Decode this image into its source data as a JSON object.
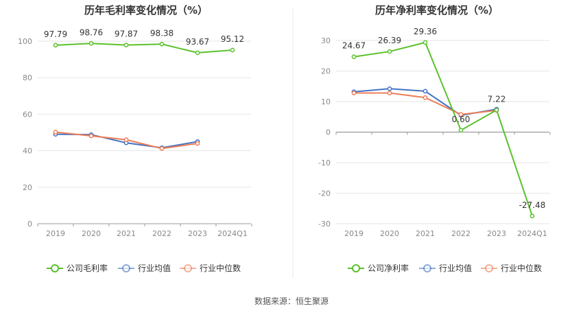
{
  "chart_data": [
    {
      "type": "line",
      "title": "历年毛利率变化情况（%）",
      "categories": [
        "2019",
        "2020",
        "2021",
        "2022",
        "2023",
        "2024Q1"
      ],
      "y_ticks": [
        0,
        20,
        40,
        60,
        80,
        100
      ],
      "ylim": [
        0,
        100
      ],
      "grid": true,
      "series": [
        {
          "name": "公司毛利率",
          "color": "#5ac12b",
          "values": [
            97.79,
            98.76,
            97.87,
            98.38,
            93.67,
            95.12
          ],
          "labels": [
            "97.79",
            "98.76",
            "97.87",
            "98.38",
            "93.67",
            "95.12"
          ]
        },
        {
          "name": "行业均值",
          "color": "#4472c4",
          "values": [
            49.0,
            48.8,
            44.3,
            41.6,
            45.0,
            null
          ]
        },
        {
          "name": "行业中位数",
          "color": "#ed7d57",
          "values": [
            50.2,
            48.1,
            46.0,
            41.2,
            44.0,
            null
          ]
        }
      ]
    },
    {
      "type": "line",
      "title": "历年净利率变化情况（%）",
      "categories": [
        "2019",
        "2020",
        "2021",
        "2022",
        "2023",
        "2024Q1"
      ],
      "y_ticks": [
        -30,
        -20,
        -10,
        0,
        10,
        20,
        30
      ],
      "ylim": [
        -30,
        30
      ],
      "grid": true,
      "series": [
        {
          "name": "公司净利率",
          "color": "#5ac12b",
          "values": [
            24.67,
            26.39,
            29.36,
            0.6,
            7.22,
            -27.48
          ],
          "labels": [
            "24.67",
            "26.39",
            "29.36",
            "0.60",
            "7.22",
            "-27.48"
          ]
        },
        {
          "name": "行业均值",
          "color": "#4472c4",
          "values": [
            13.2,
            14.2,
            13.4,
            5.5,
            7.5,
            null
          ]
        },
        {
          "name": "行业中位数",
          "color": "#ed7d57",
          "values": [
            12.8,
            12.8,
            11.3,
            5.8,
            7.1,
            null
          ]
        }
      ]
    }
  ],
  "footer": "数据来源：恒生聚源"
}
